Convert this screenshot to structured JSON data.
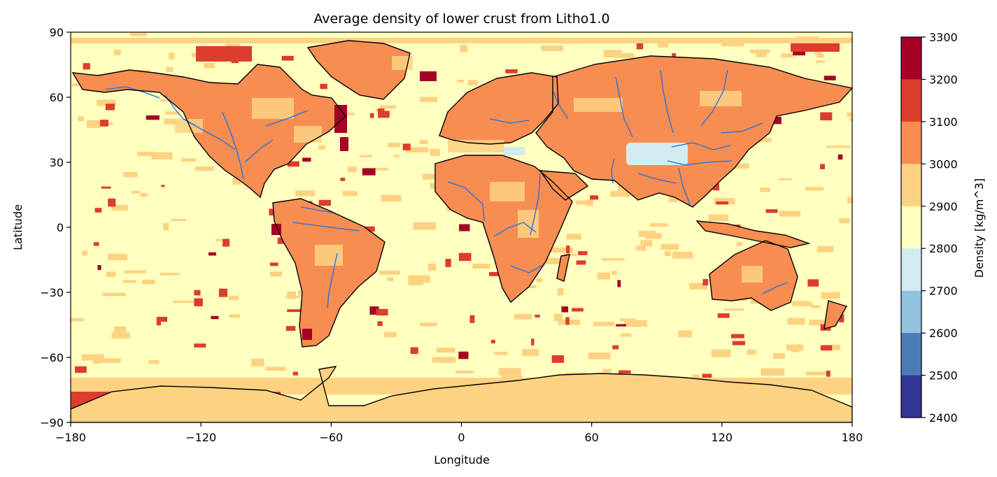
{
  "title": "Average density of lower crust from Litho1.0",
  "xlabel": "Longitude",
  "ylabel": "Latitude",
  "colorbar": {
    "label": "Density [kg/m^3]",
    "ticks": [
      "3300",
      "3200",
      "3100",
      "3000",
      "2900",
      "2800",
      "2700",
      "2600",
      "2500",
      "2400"
    ],
    "bins": [
      {
        "from": 3200,
        "to": 3300,
        "color": "#a50026"
      },
      {
        "from": 3100,
        "to": 3200,
        "color": "#dd3d2d"
      },
      {
        "from": 3000,
        "to": 3100,
        "color": "#f88d52"
      },
      {
        "from": 2900,
        "to": 3000,
        "color": "#fdd282"
      },
      {
        "from": 2800,
        "to": 2900,
        "color": "#ffffbf"
      },
      {
        "from": 2700,
        "to": 2800,
        "color": "#d3ecf4"
      },
      {
        "from": 2600,
        "to": 2700,
        "color": "#91c3de"
      },
      {
        "from": 2500,
        "to": 2600,
        "color": "#4a7bb7"
      },
      {
        "from": 2400,
        "to": 2500,
        "color": "#313695"
      }
    ]
  },
  "axes": {
    "x_ticks": [
      "−180",
      "−120",
      "−60",
      "0",
      "60",
      "120",
      "180"
    ],
    "y_ticks": [
      "90",
      "60",
      "30",
      "0",
      "−30",
      "−60",
      "−90"
    ],
    "xlim": [
      -180,
      180
    ],
    "ylim": [
      -90,
      90
    ]
  },
  "style": {
    "ocean": "#ffffbf",
    "continent": "#f88d52",
    "antarctica": "#fdd282",
    "river": "#1a6fe6",
    "coast": "#000000",
    "hotspot": "#dd3d2d",
    "hotspot_dark": "#a50026",
    "ocean_mid": "#fdd282",
    "shield_light": "#d3ecf4"
  }
}
